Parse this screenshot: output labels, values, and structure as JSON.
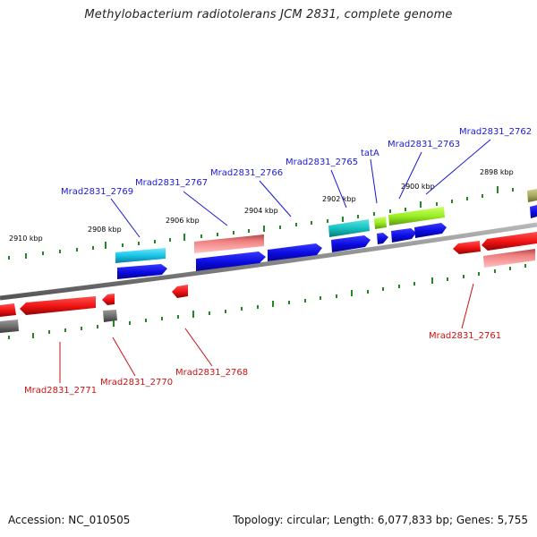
{
  "title": "Methylobacterium radiotolerans JCM 2831, complete genome",
  "accession": "Accession: NC_010505",
  "topology": "Topology: circular; Length: 6,077,833 bp; Genes: 5,755",
  "ticks": [
    "2910 kbp",
    "2908 kbp",
    "2906 kbp",
    "2904 kbp",
    "2902 kbp",
    "2900 kbp",
    "2898 kbp"
  ],
  "genes_forward": [
    "Mrad2831_2769",
    "Mrad2831_2767",
    "Mrad2831_2766",
    "Mrad2831_2765",
    "tatA",
    "Mrad2831_2763",
    "Mrad2831_2762"
  ],
  "genes_reverse": [
    "Mrad2831_2771",
    "Mrad2831_2770",
    "Mrad2831_2768",
    "Mrad2831_2761"
  ],
  "colors": {
    "forward_gene": "#0a0ae0",
    "reverse_gene": "#ee1111",
    "cyan_gene": "#19c6e6",
    "teal_gene": "#15c2c2",
    "lime_gene": "#99ee22",
    "pink_gene": "#f08080",
    "gray_gene": "#707070",
    "olive_gene": "#a8a860",
    "backbone": "#888888",
    "tick_mark": "#228822",
    "label_fwd": "#1a1ad8",
    "label_rev": "#cc1111"
  }
}
